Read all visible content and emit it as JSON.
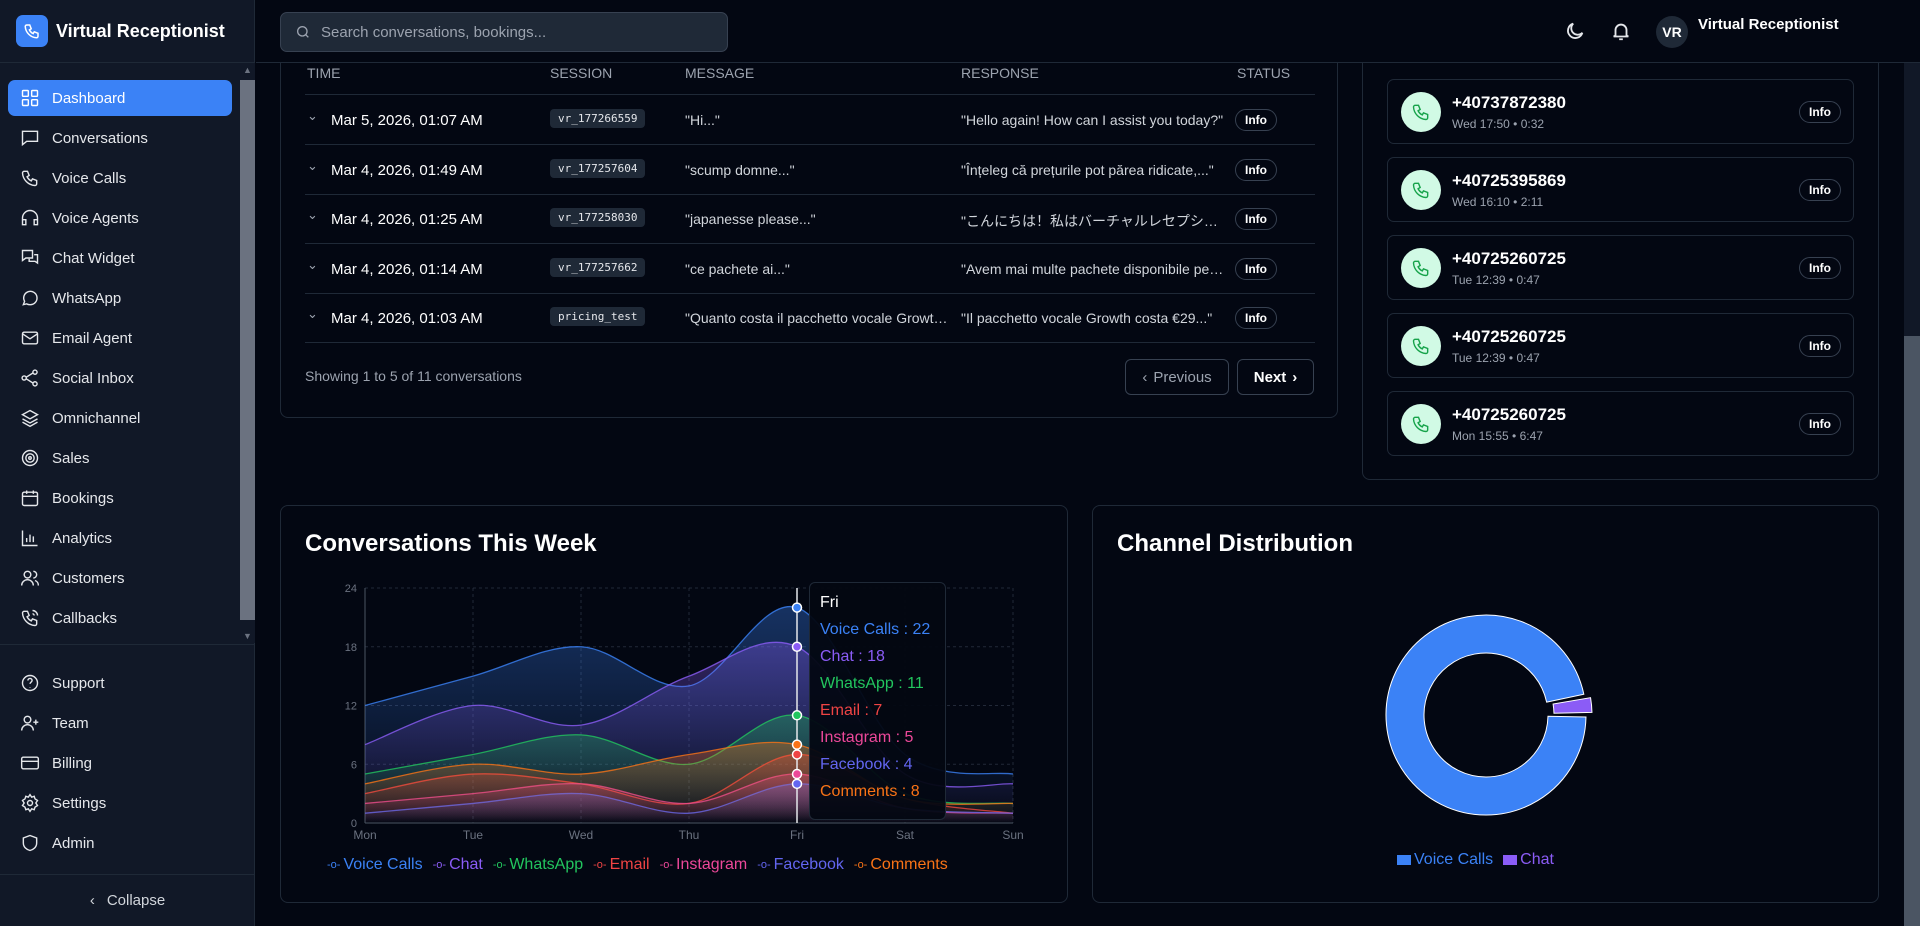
{
  "app": {
    "title": "Virtual Receptionist"
  },
  "sidebar": {
    "items": [
      {
        "label": "Dashboard",
        "icon": "dashboard-icon",
        "active": true
      },
      {
        "label": "Conversations",
        "icon": "message-icon"
      },
      {
        "label": "Voice Calls",
        "icon": "phone-icon"
      },
      {
        "label": "Voice Agents",
        "icon": "headphones-icon"
      },
      {
        "label": "Chat Widget",
        "icon": "chat-widget-icon"
      },
      {
        "label": "WhatsApp",
        "icon": "whatsapp-icon"
      },
      {
        "label": "Email Agent",
        "icon": "mail-icon"
      },
      {
        "label": "Social Inbox",
        "icon": "share-icon"
      },
      {
        "label": "Omnichannel",
        "icon": "layers-icon"
      },
      {
        "label": "Sales",
        "icon": "target-icon"
      },
      {
        "label": "Bookings",
        "icon": "calendar-icon"
      },
      {
        "label": "Analytics",
        "icon": "bar-chart-icon"
      },
      {
        "label": "Customers",
        "icon": "users-icon"
      },
      {
        "label": "Callbacks",
        "icon": "phone-callback-icon"
      }
    ],
    "bottom": [
      {
        "label": "Support",
        "icon": "help-icon"
      },
      {
        "label": "Team",
        "icon": "user-plus-icon"
      },
      {
        "label": "Billing",
        "icon": "credit-card-icon"
      },
      {
        "label": "Settings",
        "icon": "gear-icon"
      },
      {
        "label": "Admin",
        "icon": "shield-icon"
      }
    ],
    "collapse_label": "Collapse"
  },
  "header": {
    "search_placeholder": "Search conversations, bookings...",
    "user_initials": "VR",
    "user_name": "Virtual Receptionist"
  },
  "conversations": {
    "columns": [
      "TIME",
      "SESSION",
      "MESSAGE",
      "RESPONSE",
      "STATUS"
    ],
    "rows": [
      {
        "time": "Mar 5, 2026, 01:07 AM",
        "session": "vr_177266559",
        "message": "\"Hi...\"",
        "response": "\"Hello again! How can I assist you today?\"",
        "status": "Info"
      },
      {
        "time": "Mar 4, 2026, 01:49 AM",
        "session": "vr_177257604",
        "message": "\"scump domne...\"",
        "response": "\"Înțeleg că prețurile pot părea ridicate,...\"",
        "status": "Info"
      },
      {
        "time": "Mar 4, 2026, 01:25 AM",
        "session": "vr_177258030",
        "message": "\"japanesse please...\"",
        "response": "\"こんにちは！私はバーチャルレセプショニストです\"",
        "status": "Info"
      },
      {
        "time": "Mar 4, 2026, 01:14 AM",
        "session": "vr_177257662",
        "message": "\"ce pachete ai...\"",
        "response": "\"Avem mai multe pachete disponibile pentru\"",
        "status": "Info"
      },
      {
        "time": "Mar 4, 2026, 01:03 AM",
        "session": "pricing_test",
        "message": "\"Quanto costa il pacchetto vocale Growth?\"",
        "response": "\"Il pacchetto vocale Growth costa €29...\"",
        "status": "Info"
      }
    ],
    "footer": "Showing 1 to 5 of 11 conversations",
    "prev_label": "Previous",
    "next_label": "Next"
  },
  "calls": [
    {
      "number": "+40737872380",
      "meta": "Wed 17:50 • 0:32",
      "badge": "Info"
    },
    {
      "number": "+40725395869",
      "meta": "Wed 16:10 • 2:11",
      "badge": "Info"
    },
    {
      "number": "+40725260725",
      "meta": "Tue 12:39 • 0:47",
      "badge": "Info"
    },
    {
      "number": "+40725260725",
      "meta": "Tue 12:39 • 0:47",
      "badge": "Info"
    },
    {
      "number": "+40725260725",
      "meta": "Mon 15:55 • 6:47",
      "badge": "Info"
    }
  ],
  "chart_data": [
    {
      "type": "area",
      "title": "Conversations This Week",
      "categories": [
        "Mon",
        "Tue",
        "Wed",
        "Thu",
        "Fri",
        "Sat",
        "Sun"
      ],
      "ylim": [
        0,
        24
      ],
      "yticks": [
        "0",
        "6",
        "12",
        "18",
        "24"
      ],
      "grid": true,
      "legend": "bottom",
      "series": [
        {
          "name": "Voice Calls",
          "color": "#3b82f6",
          "values": [
            12,
            15,
            18,
            14,
            22,
            7,
            5
          ]
        },
        {
          "name": "Chat",
          "color": "#8b5cf6",
          "values": [
            8,
            12,
            10,
            15,
            18,
            5,
            4
          ]
        },
        {
          "name": "WhatsApp",
          "color": "#22c55e",
          "values": [
            5,
            7,
            9,
            6,
            11,
            3,
            2
          ]
        },
        {
          "name": "Email",
          "color": "#ef4444",
          "values": [
            3,
            5,
            4,
            2,
            7,
            2.5,
            1
          ]
        },
        {
          "name": "Instagram",
          "color": "#ec4899",
          "values": [
            2,
            3,
            4,
            2,
            5,
            1.5,
            1
          ]
        },
        {
          "name": "Facebook",
          "color": "#6366f1",
          "values": [
            1,
            2,
            3,
            1,
            4,
            1.5,
            1
          ]
        },
        {
          "name": "Comments",
          "color": "#f97316",
          "values": [
            4,
            6,
            5,
            7,
            8,
            2.5,
            2
          ]
        }
      ],
      "tooltip": {
        "title": "Fri",
        "lines": [
          "Voice Calls : 22",
          "Chat : 18",
          "WhatsApp : 11",
          "Email : 7",
          "Instagram : 5",
          "Facebook : 4",
          "Comments : 8"
        ]
      }
    },
    {
      "type": "pie",
      "title": "Channel Distribution",
      "legend": "bottom",
      "series": [
        {
          "name": "Voice Calls",
          "color": "#3b82f6",
          "value": 97
        },
        {
          "name": "Chat",
          "color": "#8b5cf6",
          "value": 3
        }
      ]
    }
  ]
}
